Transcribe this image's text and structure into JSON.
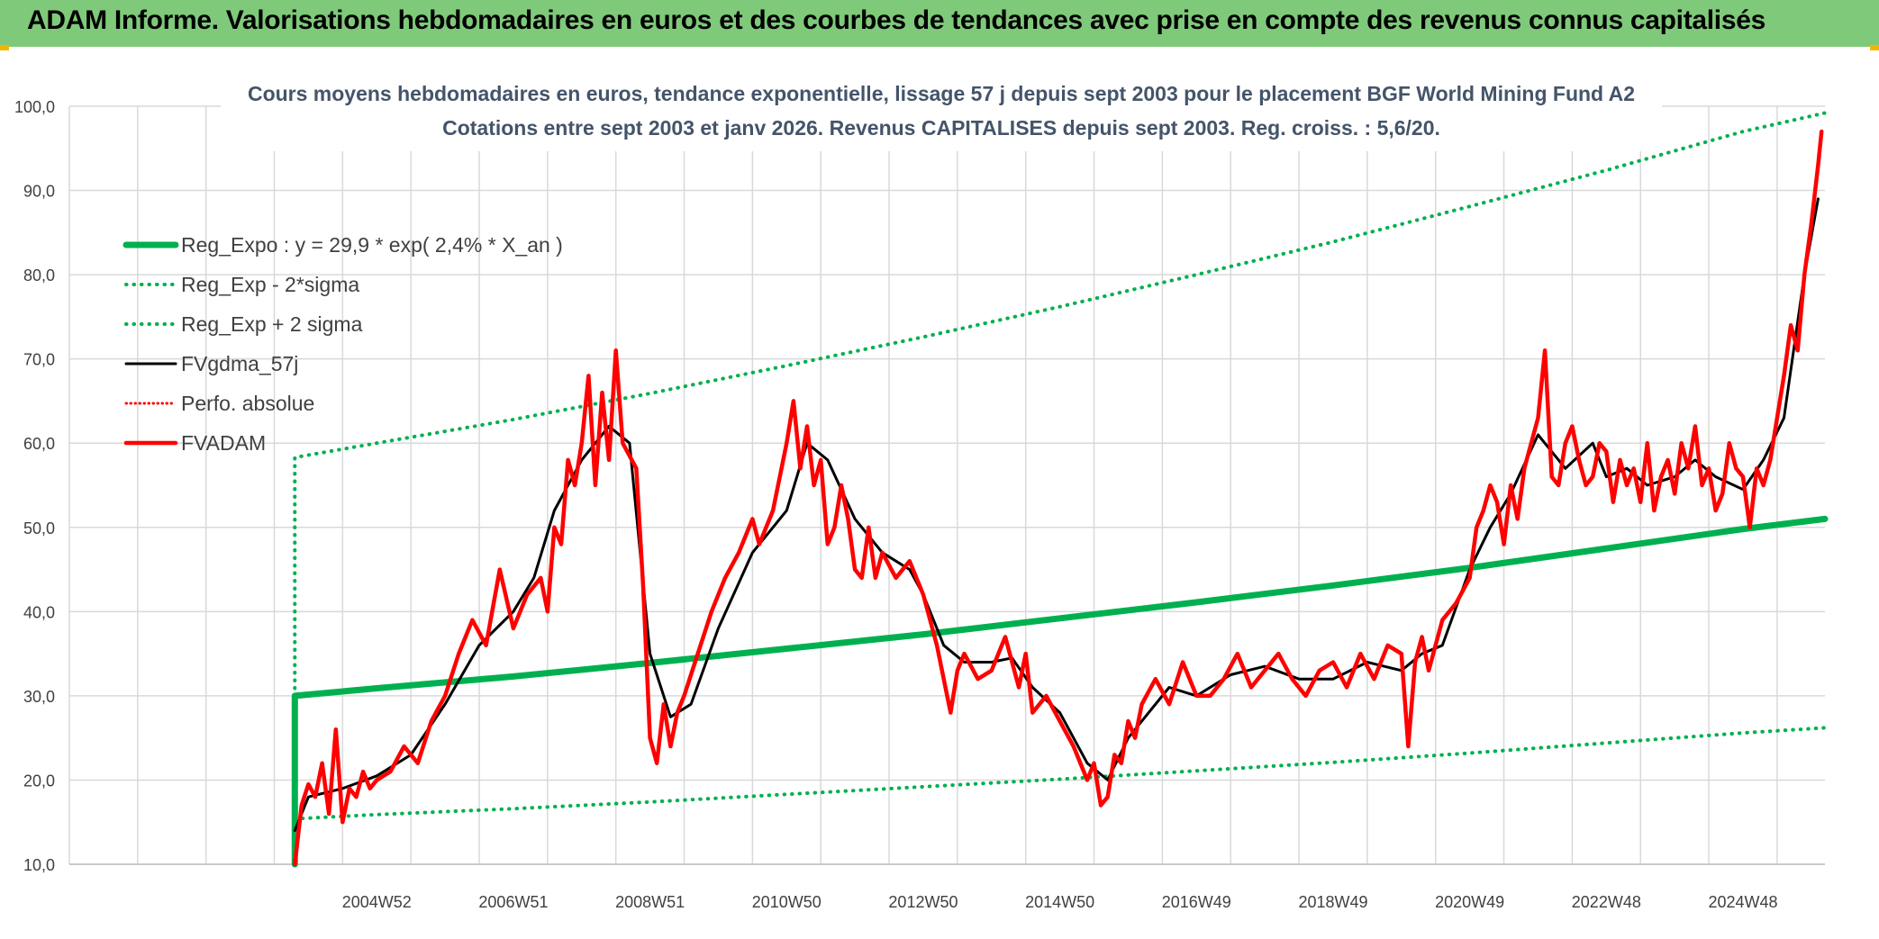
{
  "banner": {
    "title": "ADAM Informe. Valorisations hebdomadaires en euros et des courbes de tendances avec prise en compte des revenus connus capitalisés",
    "background_color": "#7fc97a"
  },
  "chart_data": {
    "type": "line",
    "title": "Cours moyens hebdomadaires en euros, tendance exponentielle, lissage 57 j depuis sept 2003 pour le placement BGF World Mining Fund A2",
    "subtitle": "Cotations entre sept 2003 et janv 2026. Revenus CAPITALISES depuis sept 2003. Reg. croiss. : 5,6/20.",
    "xlabel": "",
    "ylabel": "",
    "ylim": [
      10,
      100
    ],
    "yticks": [
      "10,0",
      "20,0",
      "30,0",
      "40,0",
      "50,0",
      "60,0",
      "70,0",
      "80,0",
      "90,0",
      "100,0"
    ],
    "xlim": [
      2000.5,
      2026.2
    ],
    "xticks": [
      {
        "label": "2004W52",
        "x": 2005.0
      },
      {
        "label": "2006W51",
        "x": 2007.0
      },
      {
        "label": "2008W51",
        "x": 2009.0
      },
      {
        "label": "2010W50",
        "x": 2011.0
      },
      {
        "label": "2012W50",
        "x": 2013.0
      },
      {
        "label": "2014W50",
        "x": 2015.0
      },
      {
        "label": "2016W49",
        "x": 2017.0
      },
      {
        "label": "2018W49",
        "x": 2019.0
      },
      {
        "label": "2020W49",
        "x": 2021.0
      },
      {
        "label": "2022W48",
        "x": 2023.0
      },
      {
        "label": "2024W48",
        "x": 2025.0
      }
    ],
    "grid": true,
    "legend_position": "top-left",
    "series": [
      {
        "name": "Reg_Expo : y = 29,9 * exp( 2,4% *  X_an )",
        "color": "#00b050",
        "style": "solid-thick",
        "x": [
          2003.8,
          2003.8,
          2005.0,
          2007.0,
          2009.0,
          2011.0,
          2013.0,
          2015.0,
          2017.0,
          2019.0,
          2021.0,
          2023.0,
          2025.0,
          2026.2
        ],
        "values": [
          10.0,
          30.0,
          30.9,
          32.3,
          33.9,
          35.6,
          37.3,
          39.2,
          41.1,
          43.1,
          45.2,
          47.5,
          49.8,
          51.0
        ]
      },
      {
        "name": "Reg_Exp - 2*sigma",
        "color": "#00b050",
        "style": "dotted",
        "x": [
          2003.8,
          2005.0,
          2007.0,
          2009.0,
          2011.0,
          2013.0,
          2015.0,
          2017.0,
          2019.0,
          2021.0,
          2023.0,
          2025.0,
          2026.2
        ],
        "values": [
          15.4,
          15.9,
          16.6,
          17.4,
          18.3,
          19.2,
          20.1,
          21.1,
          22.1,
          23.2,
          24.4,
          25.6,
          26.2
        ]
      },
      {
        "name": "Reg_Exp + 2 sigma",
        "color": "#00b050",
        "style": "dotted",
        "x": [
          2003.8,
          2003.8,
          2005.0,
          2007.0,
          2009.0,
          2011.0,
          2013.0,
          2015.0,
          2017.0,
          2019.0,
          2021.0,
          2023.0,
          2025.0,
          2026.2
        ],
        "values": [
          10.0,
          58.3,
          60.0,
          62.8,
          65.9,
          69.2,
          72.6,
          76.2,
          80.0,
          83.9,
          88.1,
          92.4,
          97.0,
          99.2
        ]
      },
      {
        "name": "FVgdma_57j",
        "color": "#000000",
        "style": "solid",
        "x": [
          2003.8,
          2004.0,
          2004.5,
          2005.0,
          2005.5,
          2006.0,
          2006.5,
          2007.0,
          2007.3,
          2007.6,
          2008.0,
          2008.4,
          2008.7,
          2009.0,
          2009.3,
          2009.6,
          2010.0,
          2010.5,
          2011.0,
          2011.3,
          2011.6,
          2012.0,
          2012.4,
          2012.8,
          2013.0,
          2013.3,
          2013.6,
          2014.0,
          2014.3,
          2014.6,
          2015.0,
          2015.4,
          2015.7,
          2016.0,
          2016.3,
          2016.6,
          2017.0,
          2017.5,
          2018.0,
          2018.5,
          2019.0,
          2019.5,
          2020.0,
          2020.3,
          2020.6,
          2021.0,
          2021.3,
          2021.6,
          2022.0,
          2022.4,
          2022.8,
          2023.0,
          2023.3,
          2023.6,
          2024.0,
          2024.3,
          2024.6,
          2025.0,
          2025.3,
          2025.6,
          2025.9,
          2026.1
        ],
        "values": [
          14.0,
          18.0,
          19.0,
          20.5,
          23.0,
          29.0,
          36.0,
          40.0,
          44.0,
          52.0,
          58.0,
          62.0,
          60.0,
          35.0,
          27.5,
          29.0,
          38.0,
          47.0,
          52.0,
          60.0,
          58.0,
          51.0,
          47.0,
          45.0,
          42.0,
          36.0,
          34.0,
          34.0,
          34.5,
          31.0,
          28.0,
          22.0,
          20.0,
          25.0,
          28.0,
          31.0,
          30.0,
          32.5,
          33.5,
          32.0,
          32.0,
          34.0,
          33.0,
          35.0,
          36.0,
          45.0,
          50.0,
          54.0,
          61.0,
          57.0,
          60.0,
          56.0,
          57.0,
          55.0,
          56.0,
          58.0,
          56.0,
          54.5,
          58.0,
          63.0,
          80.0,
          89.0
        ]
      },
      {
        "name": "Perfo. absolue",
        "color": "#ff0000",
        "style": "dotted",
        "x": [],
        "values": []
      },
      {
        "name": "FVADAM",
        "color": "#ff0000",
        "style": "solid-thick",
        "x": [
          2003.8,
          2003.9,
          2004.0,
          2004.1,
          2004.2,
          2004.3,
          2004.4,
          2004.5,
          2004.6,
          2004.7,
          2004.8,
          2004.9,
          2005.0,
          2005.2,
          2005.4,
          2005.6,
          2005.8,
          2006.0,
          2006.2,
          2006.4,
          2006.6,
          2006.8,
          2007.0,
          2007.2,
          2007.4,
          2007.5,
          2007.6,
          2007.7,
          2007.8,
          2007.9,
          2008.0,
          2008.1,
          2008.2,
          2008.3,
          2008.4,
          2008.5,
          2008.6,
          2008.8,
          2008.9,
          2009.0,
          2009.1,
          2009.2,
          2009.3,
          2009.4,
          2009.5,
          2009.7,
          2009.9,
          2010.1,
          2010.3,
          2010.5,
          2010.6,
          2010.8,
          2011.0,
          2011.1,
          2011.2,
          2011.3,
          2011.4,
          2011.5,
          2011.6,
          2011.7,
          2011.8,
          2011.9,
          2012.0,
          2012.1,
          2012.2,
          2012.3,
          2012.4,
          2012.6,
          2012.8,
          2013.0,
          2013.2,
          2013.4,
          2013.5,
          2013.6,
          2013.8,
          2014.0,
          2014.2,
          2014.4,
          2014.5,
          2014.6,
          2014.8,
          2015.0,
          2015.2,
          2015.4,
          2015.5,
          2015.6,
          2015.7,
          2015.8,
          2015.9,
          2016.0,
          2016.1,
          2016.2,
          2016.4,
          2016.6,
          2016.8,
          2017.0,
          2017.2,
          2017.4,
          2017.6,
          2017.8,
          2018.0,
          2018.2,
          2018.4,
          2018.6,
          2018.8,
          2019.0,
          2019.2,
          2019.4,
          2019.6,
          2019.8,
          2020.0,
          2020.1,
          2020.2,
          2020.3,
          2020.4,
          2020.6,
          2020.8,
          2021.0,
          2021.1,
          2021.2,
          2021.3,
          2021.4,
          2021.5,
          2021.6,
          2021.7,
          2021.8,
          2021.9,
          2022.0,
          2022.1,
          2022.2,
          2022.3,
          2022.4,
          2022.5,
          2022.6,
          2022.7,
          2022.8,
          2022.9,
          2023.0,
          2023.1,
          2023.2,
          2023.3,
          2023.4,
          2023.5,
          2023.6,
          2023.7,
          2023.8,
          2023.9,
          2024.0,
          2024.1,
          2024.2,
          2024.3,
          2024.4,
          2024.5,
          2024.6,
          2024.7,
          2024.8,
          2024.9,
          2025.0,
          2025.1,
          2025.2,
          2025.3,
          2025.4,
          2025.5,
          2025.6,
          2025.7,
          2025.8,
          2025.9,
          2026.0,
          2026.1,
          2026.15
        ],
        "values": [
          10.0,
          17.0,
          19.5,
          18.0,
          22.0,
          16.0,
          26.0,
          15.0,
          19.0,
          18.0,
          21.0,
          19.0,
          20.0,
          21.0,
          24.0,
          22.0,
          27.0,
          30.0,
          35.0,
          39.0,
          36.0,
          45.0,
          38.0,
          42.0,
          44.0,
          40.0,
          50.0,
          48.0,
          58.0,
          55.0,
          60.0,
          68.0,
          55.0,
          66.0,
          58.0,
          71.0,
          60.0,
          57.0,
          43.0,
          25.0,
          22.0,
          29.0,
          24.0,
          28.0,
          30.0,
          35.0,
          40.0,
          44.0,
          47.0,
          51.0,
          48.0,
          52.0,
          60.0,
          65.0,
          57.0,
          62.0,
          55.0,
          58.0,
          48.0,
          50.0,
          55.0,
          51.0,
          45.0,
          44.0,
          50.0,
          44.0,
          47.0,
          44.0,
          46.0,
          42.0,
          36.0,
          28.0,
          33.0,
          35.0,
          32.0,
          33.0,
          37.0,
          31.0,
          35.0,
          28.0,
          30.0,
          27.0,
          24.0,
          20.0,
          22.0,
          17.0,
          18.0,
          23.0,
          22.0,
          27.0,
          25.0,
          29.0,
          32.0,
          29.0,
          34.0,
          30.0,
          30.0,
          32.0,
          35.0,
          31.0,
          33.0,
          35.0,
          32.0,
          30.0,
          33.0,
          34.0,
          31.0,
          35.0,
          32.0,
          36.0,
          35.0,
          24.0,
          34.0,
          37.0,
          33.0,
          39.0,
          41.0,
          44.0,
          50.0,
          52.0,
          55.0,
          53.0,
          48.0,
          55.0,
          51.0,
          57.0,
          60.0,
          63.0,
          71.0,
          56.0,
          55.0,
          60.0,
          62.0,
          58.0,
          55.0,
          56.0,
          60.0,
          59.0,
          53.0,
          58.0,
          55.0,
          57.0,
          53.0,
          60.0,
          52.0,
          56.0,
          58.0,
          54.0,
          60.0,
          57.0,
          62.0,
          55.0,
          57.0,
          52.0,
          54.0,
          60.0,
          57.0,
          56.0,
          50.0,
          57.0,
          55.0,
          58.0,
          63.0,
          68.0,
          74.0,
          71.0,
          80.0,
          86.0,
          93.0,
          97.0
        ]
      }
    ]
  }
}
